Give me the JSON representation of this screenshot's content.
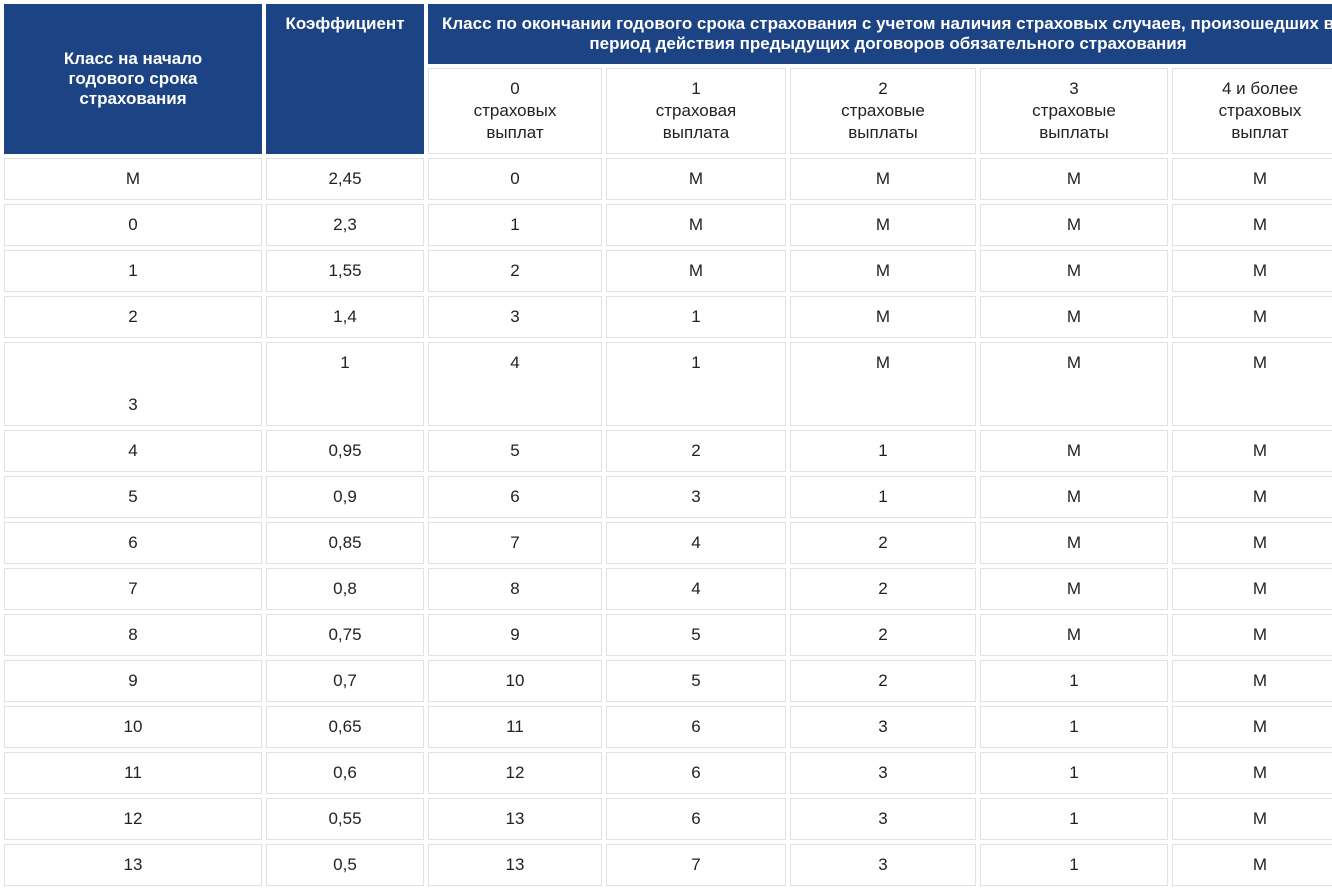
{
  "table": {
    "header": {
      "class_start": "Класс на начало годового срока страхования",
      "coefficient": "Коэффициент",
      "class_end": "Класс по окончании годового срока страхования с учетом наличия страховых случаев, произошедших в период действия предыдущих договоров обязательного страхования",
      "payouts": [
        "0\nстраховых\nвыплат",
        "1\nстраховая\nвыплата",
        "2\nстраховые\nвыплаты",
        "3\nстраховые\nвыплаты",
        "4 и более\nстраховых\nвыплат"
      ]
    },
    "rows": [
      [
        "М",
        "2,45",
        "0",
        "М",
        "М",
        "М",
        "М"
      ],
      [
        "0",
        "2,3",
        "1",
        "М",
        "М",
        "М",
        "М"
      ],
      [
        "1",
        "1,55",
        "2",
        "М",
        "М",
        "М",
        "М"
      ],
      [
        "2",
        "1,4",
        "3",
        "1",
        "М",
        "М",
        "М"
      ],
      [
        "3",
        "1",
        "4",
        "1",
        "М",
        "М",
        "М"
      ],
      [
        "4",
        "0,95",
        "5",
        "2",
        "1",
        "М",
        "М"
      ],
      [
        "5",
        "0,9",
        "6",
        "3",
        "1",
        "М",
        "М"
      ],
      [
        "6",
        "0,85",
        "7",
        "4",
        "2",
        "М",
        "М"
      ],
      [
        "7",
        "0,8",
        "8",
        "4",
        "2",
        "М",
        "М"
      ],
      [
        "8",
        "0,75",
        "9",
        "5",
        "2",
        "М",
        "М"
      ],
      [
        "9",
        "0,7",
        "10",
        "5",
        "2",
        "1",
        "М"
      ],
      [
        "10",
        "0,65",
        "11",
        "6",
        "3",
        "1",
        "М"
      ],
      [
        "11",
        "0,6",
        "12",
        "6",
        "3",
        "1",
        "М"
      ],
      [
        "12",
        "0,55",
        "13",
        "6",
        "3",
        "1",
        "М"
      ],
      [
        "13",
        "0,5",
        "13",
        "7",
        "3",
        "1",
        "М"
      ]
    ]
  }
}
